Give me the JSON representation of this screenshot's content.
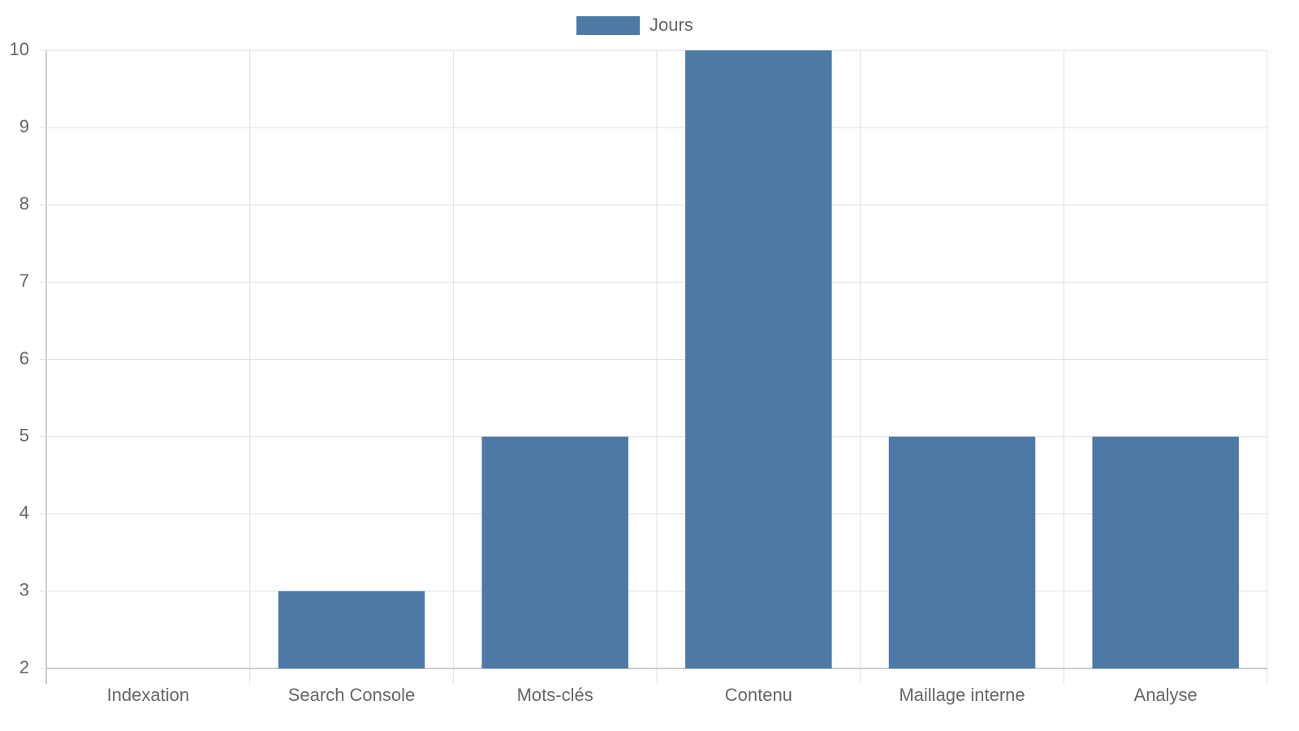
{
  "chart_data": {
    "type": "bar",
    "categories": [
      "Indexation",
      "Search Console",
      "Mots-clés",
      "Contenu",
      "Maillage interne",
      "Analyse"
    ],
    "series": [
      {
        "name": "Jours",
        "color": "#4e79a7",
        "values": [
          2,
          3,
          5,
          10,
          5,
          5
        ]
      }
    ],
    "ylim": [
      2,
      10
    ],
    "yticks": [
      2,
      3,
      4,
      5,
      6,
      7,
      8,
      9,
      10
    ],
    "grid": true,
    "legend": "top"
  }
}
